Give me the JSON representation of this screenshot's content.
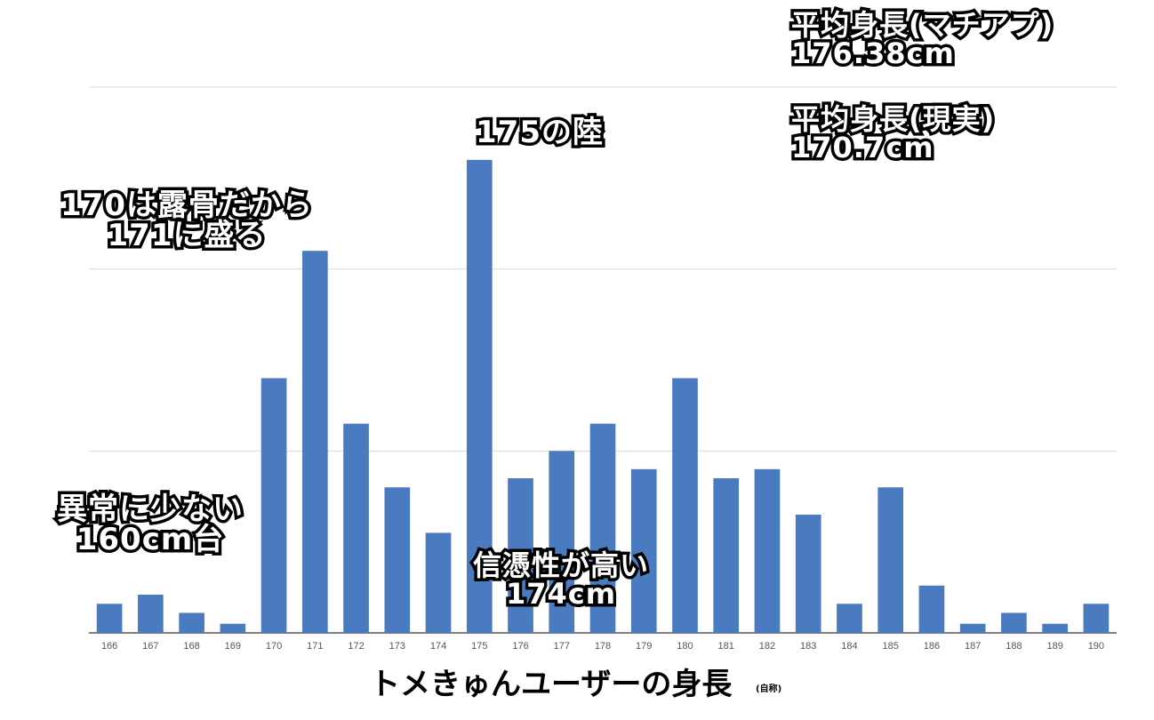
{
  "chart_data": {
    "type": "bar",
    "title": "トメきゅんユーザーの身長",
    "title_note": "(自称)",
    "xlabel": "",
    "ylabel": "",
    "categories": [
      "166",
      "167",
      "168",
      "169",
      "170",
      "171",
      "172",
      "173",
      "174",
      "175",
      "176",
      "177",
      "178",
      "179",
      "180",
      "181",
      "182",
      "183",
      "184",
      "185",
      "186",
      "187",
      "188",
      "189",
      "190"
    ],
    "series": [
      {
        "values": [
          3.2,
          4.2,
          2.2,
          1.0,
          28.0,
          42.0,
          23.0,
          16.0,
          11.0,
          52.0,
          17.0,
          20.0,
          23.0,
          18.0,
          28.0,
          17.0,
          18.0,
          13.0,
          3.2,
          16.0,
          5.2,
          1.0,
          2.2,
          1.0,
          3.2
        ]
      }
    ],
    "ylim": [
      0,
      60
    ],
    "grid": true,
    "gridlines": [
      0,
      20,
      40,
      60
    ],
    "bar_color": "#4a7bc0",
    "annotations": {
      "avg_app": [
        "平均身長(マチアプ)",
        "176.38cm"
      ],
      "avg_real": [
        "平均身長(現実)",
        "170.7cm"
      ],
      "note_175": [
        "175の陸"
      ],
      "note_170": [
        "170は露骨だから",
        "171に盛る"
      ],
      "note_160": [
        "異常に少ない",
        "160cm台"
      ],
      "note_174": [
        "信憑性が高い",
        "174cm"
      ]
    }
  }
}
